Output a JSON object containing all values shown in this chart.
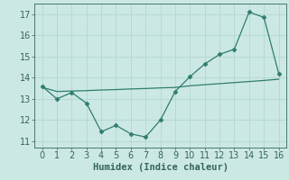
{
  "x": [
    0,
    1,
    2,
    3,
    4,
    5,
    6,
    7,
    8,
    9,
    10,
    11,
    12,
    13,
    14,
    15,
    16
  ],
  "y_line": [
    13.6,
    13.0,
    13.3,
    12.8,
    11.45,
    11.75,
    11.35,
    11.2,
    12.0,
    13.35,
    14.05,
    14.65,
    15.1,
    15.35,
    17.1,
    16.85,
    14.2
  ],
  "y_trend": [
    13.55,
    13.35,
    13.37,
    13.39,
    13.42,
    13.44,
    13.47,
    13.49,
    13.52,
    13.54,
    13.62,
    13.67,
    13.72,
    13.77,
    13.82,
    13.87,
    13.93
  ],
  "xlabel": "Humidex (Indice chaleur)",
  "ylim": [
    10.7,
    17.5
  ],
  "xlim": [
    -0.5,
    16.5
  ],
  "yticks": [
    11,
    12,
    13,
    14,
    15,
    16,
    17
  ],
  "xticks": [
    0,
    1,
    2,
    3,
    4,
    5,
    6,
    7,
    8,
    9,
    10,
    11,
    12,
    13,
    14,
    15,
    16
  ],
  "line_color": "#2e7d6e",
  "bg_color": "#cce8e4",
  "grid_color": "#b0d8d2",
  "tick_color": "#336655",
  "marker": "D",
  "marker_size": 2.5,
  "tick_fontsize": 7,
  "xlabel_fontsize": 7.5
}
